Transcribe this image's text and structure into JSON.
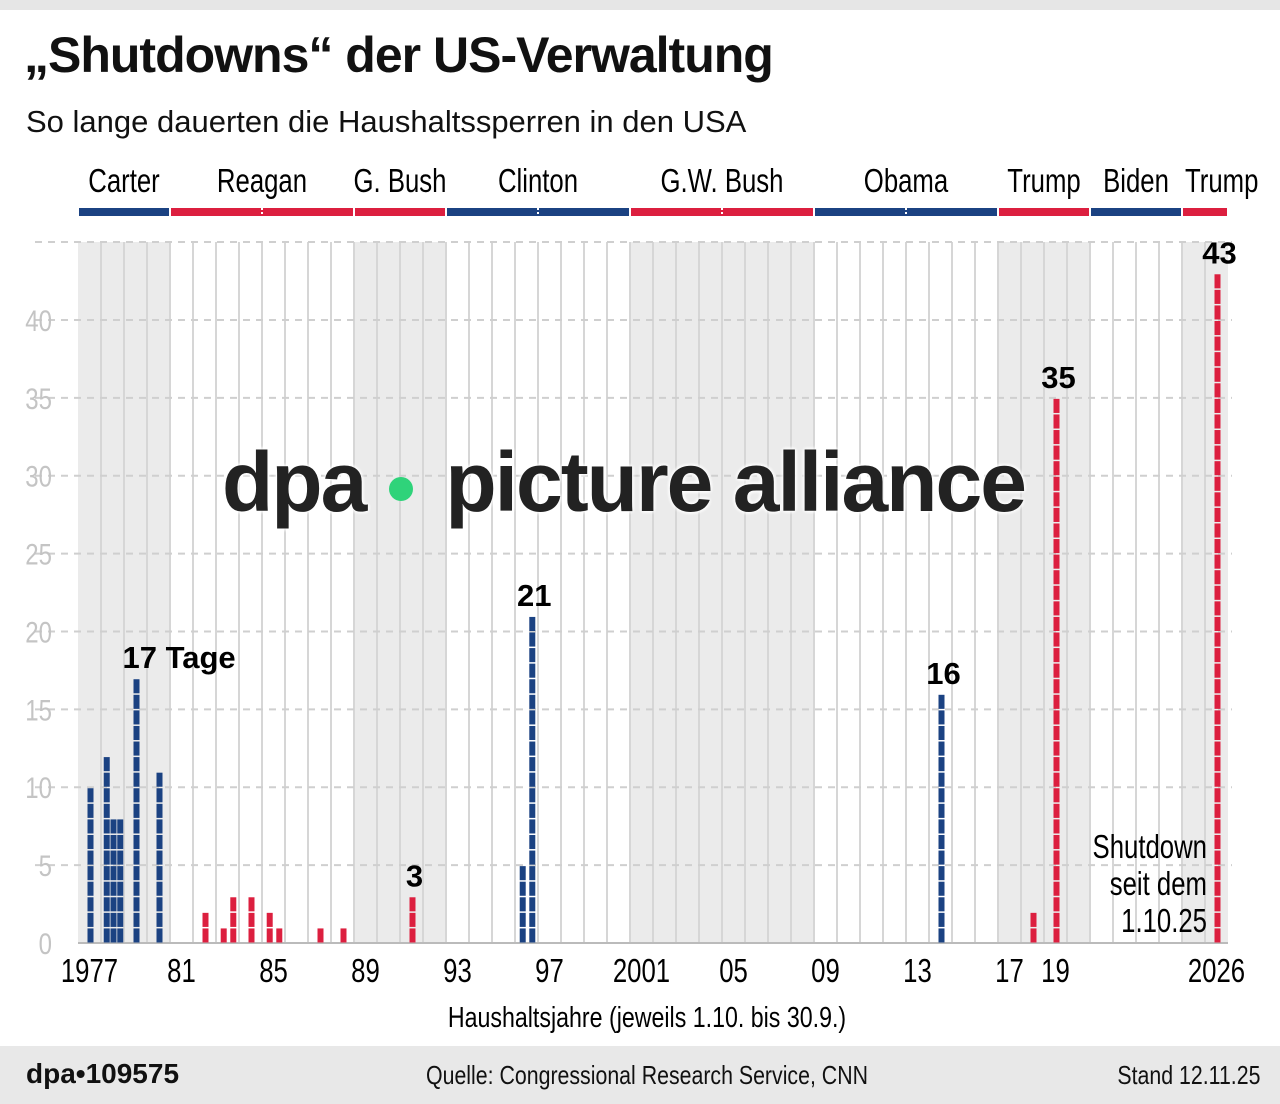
{
  "title": "„Shutdowns“ der US-Verwaltung",
  "subtitle": "So lange dauerten die Haushaltssperren in den USA",
  "watermark": {
    "left": "dpa",
    "right": "picture alliance"
  },
  "footer": {
    "id": "dpa•109575",
    "source": "Quelle: Congressional Research Service, CNN",
    "stand": "Stand 12.11.25"
  },
  "colors": {
    "democrat": "#1b4282",
    "republican": "#dc1f3f",
    "shade": "#ebebeb"
  },
  "chart_data": {
    "type": "bar",
    "xlabel": "Haushaltsjahre (jeweils 1.10. bis 30.9.)",
    "ylabel": "",
    "xlim": [
      1977,
      2026
    ],
    "ylim": [
      0,
      43
    ],
    "yticks": [
      0,
      5,
      10,
      15,
      20,
      25,
      30,
      35,
      40
    ],
    "xticks": [
      {
        "year": 1977,
        "label": "1977"
      },
      {
        "year": 1981,
        "label": "81"
      },
      {
        "year": 1985,
        "label": "85"
      },
      {
        "year": 1989,
        "label": "89"
      },
      {
        "year": 1993,
        "label": "93"
      },
      {
        "year": 1997,
        "label": "97"
      },
      {
        "year": 2001,
        "label": "2001"
      },
      {
        "year": 2005,
        "label": "05"
      },
      {
        "year": 2009,
        "label": "09"
      },
      {
        "year": 2013,
        "label": "13"
      },
      {
        "year": 2017,
        "label": "17"
      },
      {
        "year": 2019,
        "label": "19"
      },
      {
        "year": 2026,
        "label": "2026"
      }
    ],
    "grid": true,
    "presidents": [
      {
        "name": "Carter",
        "from": 1977,
        "to": 1980,
        "party": "democrat",
        "shaded": true
      },
      {
        "name": "Reagan",
        "from": 1981,
        "to": 1988,
        "party": "republican",
        "shaded": false
      },
      {
        "name": "G. Bush",
        "from": 1989,
        "to": 1992,
        "party": "republican",
        "shaded": true
      },
      {
        "name": "Clinton",
        "from": 1993,
        "to": 2000,
        "party": "democrat",
        "shaded": false
      },
      {
        "name": "G.W. Bush",
        "from": 2001,
        "to": 2008,
        "party": "republican",
        "shaded": true
      },
      {
        "name": "Obama",
        "from": 2009,
        "to": 2016,
        "party": "democrat",
        "shaded": false
      },
      {
        "name": "Trump",
        "from": 2017,
        "to": 2020,
        "party": "republican",
        "shaded": true
      },
      {
        "name": "Biden",
        "from": 2021,
        "to": 2024,
        "party": "democrat",
        "shaded": false
      },
      {
        "name": "Trump",
        "from": 2025,
        "to": 2026,
        "party": "republican",
        "shaded": true
      }
    ],
    "series": [
      {
        "values": [
          {
            "fy": 1977,
            "days": 10,
            "party": "democrat"
          },
          {
            "fy": 1978,
            "days": 12,
            "party": "democrat"
          },
          {
            "fy": 1978,
            "days": 8,
            "party": "democrat"
          },
          {
            "fy": 1978,
            "days": 8,
            "party": "democrat"
          },
          {
            "fy": 1979,
            "days": 17,
            "party": "democrat",
            "label": "17 Tage"
          },
          {
            "fy": 1980,
            "days": 11,
            "party": "democrat"
          },
          {
            "fy": 1982,
            "days": 2,
            "party": "republican"
          },
          {
            "fy": 1983,
            "days": 1,
            "party": "republican"
          },
          {
            "fy": 1983,
            "days": 3,
            "party": "republican"
          },
          {
            "fy": 1984,
            "days": 3,
            "party": "republican"
          },
          {
            "fy": 1985,
            "days": 2,
            "party": "republican"
          },
          {
            "fy": 1985,
            "days": 1,
            "party": "republican"
          },
          {
            "fy": 1987,
            "days": 1,
            "party": "republican"
          },
          {
            "fy": 1988,
            "days": 1,
            "party": "republican"
          },
          {
            "fy": 1991,
            "days": 3,
            "party": "republican",
            "label": "3"
          },
          {
            "fy": 1996,
            "days": 5,
            "party": "democrat"
          },
          {
            "fy": 1996,
            "days": 21,
            "party": "democrat",
            "label": "21"
          },
          {
            "fy": 2014,
            "days": 16,
            "party": "democrat",
            "label": "16"
          },
          {
            "fy": 2018,
            "days": 2,
            "party": "republican"
          },
          {
            "fy": 2019,
            "days": 35,
            "party": "republican",
            "label": "35"
          },
          {
            "fy": 2026,
            "days": 43,
            "party": "republican",
            "label": "43"
          }
        ]
      }
    ],
    "annotations": [
      "Shutdown",
      "seit dem",
      "1.10.25"
    ]
  }
}
